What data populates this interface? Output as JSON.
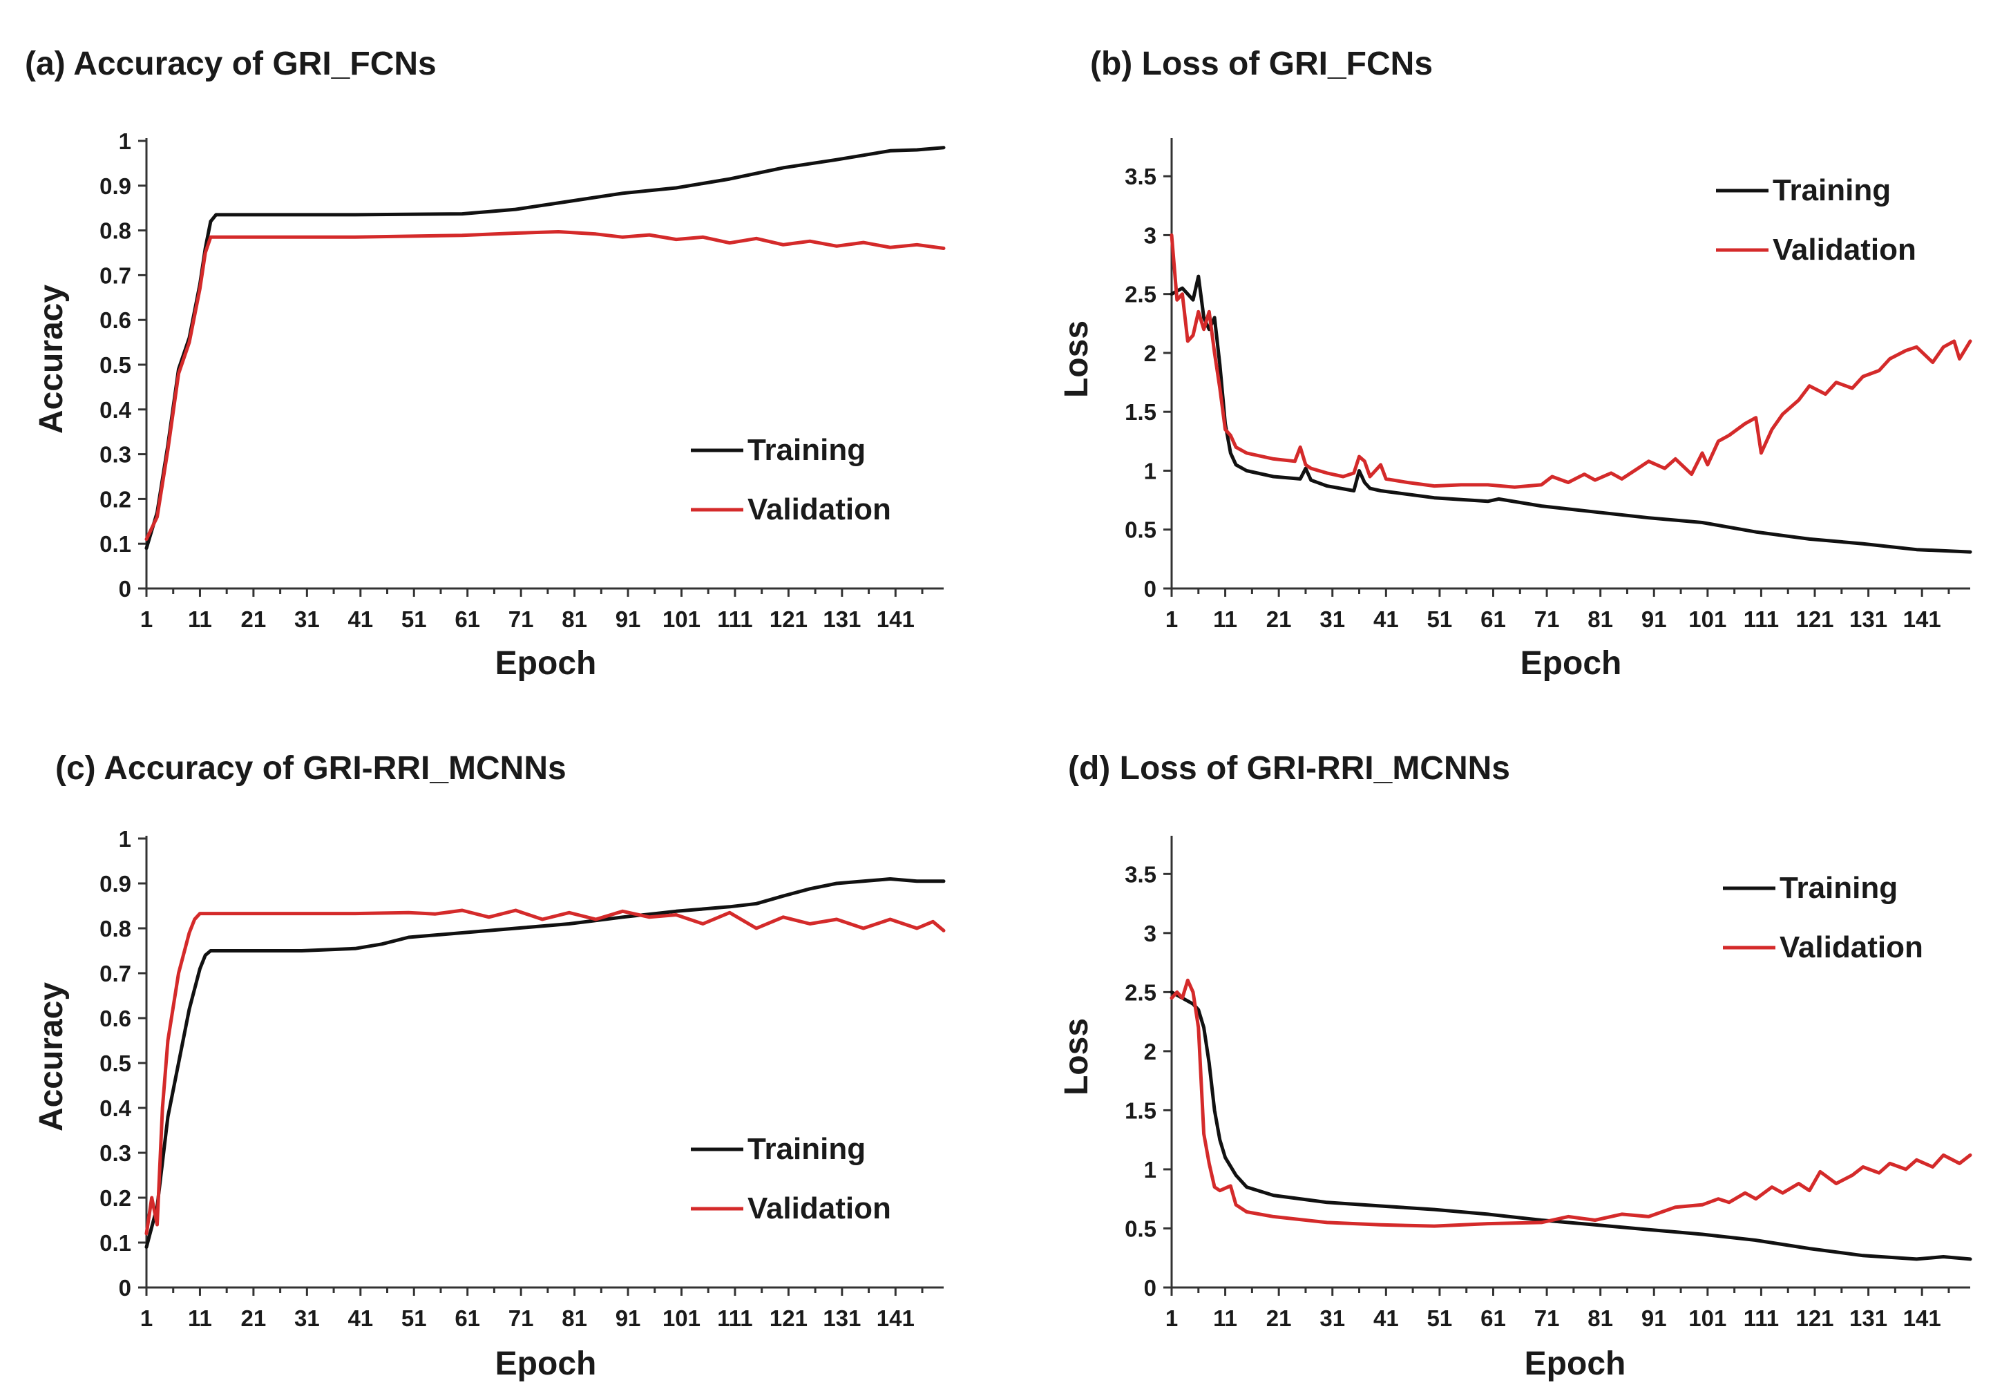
{
  "colors": {
    "training": "#111111",
    "validation": "#d42a2a"
  },
  "chart_data": [
    {
      "id": "a",
      "type": "line",
      "title": "(a) Accuracy of GRI_FCNs",
      "xlabel": "Epoch",
      "ylabel": "Accuracy",
      "xlim": [
        1,
        150
      ],
      "ylim": [
        0,
        1
      ],
      "xticks": [
        1,
        11,
        21,
        31,
        41,
        51,
        61,
        71,
        81,
        91,
        101,
        111,
        121,
        131,
        141
      ],
      "xtick_labels": [
        "1",
        "11",
        "21",
        "31",
        "41",
        "51",
        "61",
        "71",
        "81",
        "91",
        "101",
        "111",
        "121",
        "131",
        "141"
      ],
      "yticks": [
        0,
        0.1,
        0.2,
        0.3,
        0.4,
        0.5,
        0.6,
        0.7,
        0.8,
        0.9,
        1
      ],
      "ytick_labels": [
        "0",
        "0.1",
        "0.2",
        "0.3",
        "0.4",
        "0.5",
        "0.6",
        "0.7",
        "0.8",
        "0.9",
        "1"
      ],
      "legend_position": "bottom-right",
      "series": [
        {
          "name": "Training",
          "color": "#111111",
          "x": [
            1,
            3,
            5,
            7,
            9,
            11,
            12,
            13,
            14,
            20,
            40,
            60,
            70,
            80,
            90,
            100,
            110,
            120,
            130,
            140,
            145,
            150
          ],
          "y": [
            0.09,
            0.17,
            0.32,
            0.49,
            0.56,
            0.68,
            0.76,
            0.82,
            0.835,
            0.835,
            0.835,
            0.837,
            0.847,
            0.865,
            0.883,
            0.895,
            0.915,
            0.94,
            0.958,
            0.978,
            0.98,
            0.985
          ]
        },
        {
          "name": "Validation",
          "color": "#d42a2a",
          "x": [
            1,
            3,
            5,
            7,
            9,
            11,
            12,
            13,
            20,
            40,
            60,
            70,
            78,
            85,
            90,
            95,
            100,
            105,
            110,
            115,
            120,
            125,
            130,
            135,
            140,
            145,
            150
          ],
          "y": [
            0.11,
            0.16,
            0.31,
            0.48,
            0.55,
            0.67,
            0.75,
            0.785,
            0.785,
            0.785,
            0.789,
            0.794,
            0.797,
            0.792,
            0.785,
            0.79,
            0.78,
            0.785,
            0.772,
            0.782,
            0.768,
            0.776,
            0.765,
            0.773,
            0.762,
            0.768,
            0.76
          ]
        }
      ]
    },
    {
      "id": "b",
      "type": "line",
      "title": "(b) Loss of GRI_FCNs",
      "xlabel": "Epoch",
      "ylabel": "Loss",
      "xlim": [
        1,
        150
      ],
      "ylim": [
        0,
        3.8
      ],
      "xticks": [
        1,
        11,
        21,
        31,
        41,
        51,
        61,
        71,
        81,
        91,
        101,
        111,
        121,
        131,
        141
      ],
      "xtick_labels": [
        "1",
        "11",
        "21",
        "31",
        "41",
        "51",
        "61",
        "71",
        "81",
        "91",
        "101",
        "111",
        "121",
        "131",
        "141"
      ],
      "yticks": [
        0,
        0.5,
        1,
        1.5,
        2,
        2.5,
        3,
        3.5
      ],
      "ytick_labels": [
        "0",
        "0.5",
        "1",
        "1.5",
        "2",
        "2.5",
        "3",
        "3.5"
      ],
      "legend_position": "top-right",
      "series": [
        {
          "name": "Training",
          "color": "#111111",
          "x": [
            1,
            3,
            5,
            6,
            7,
            8,
            9,
            10,
            11,
            12,
            13,
            15,
            20,
            25,
            26,
            27,
            30,
            35,
            36,
            37,
            38,
            40,
            50,
            60,
            62,
            70,
            80,
            90,
            100,
            105,
            110,
            115,
            120,
            130,
            140,
            150
          ],
          "y": [
            2.5,
            2.55,
            2.45,
            2.65,
            2.3,
            2.2,
            2.3,
            1.9,
            1.4,
            1.15,
            1.05,
            1.0,
            0.95,
            0.93,
            1.02,
            0.92,
            0.87,
            0.83,
            1.0,
            0.9,
            0.85,
            0.83,
            0.77,
            0.74,
            0.76,
            0.7,
            0.65,
            0.6,
            0.56,
            0.52,
            0.48,
            0.45,
            0.42,
            0.38,
            0.33,
            0.31
          ]
        },
        {
          "name": "Validation",
          "color": "#d42a2a",
          "x": [
            1,
            2,
            3,
            4,
            5,
            6,
            7,
            8,
            9,
            10,
            11,
            12,
            13,
            15,
            20,
            24,
            25,
            26,
            27,
            30,
            33,
            35,
            36,
            37,
            38,
            40,
            41,
            45,
            50,
            55,
            60,
            65,
            70,
            72,
            75,
            78,
            80,
            83,
            85,
            88,
            90,
            93,
            95,
            98,
            100,
            101,
            103,
            105,
            108,
            110,
            111,
            113,
            115,
            118,
            120,
            123,
            125,
            128,
            130,
            133,
            135,
            138,
            140,
            143,
            145,
            147,
            148,
            150
          ],
          "y": [
            3.0,
            2.45,
            2.5,
            2.1,
            2.15,
            2.35,
            2.2,
            2.35,
            2.0,
            1.7,
            1.35,
            1.3,
            1.2,
            1.15,
            1.1,
            1.08,
            1.2,
            1.05,
            1.02,
            0.98,
            0.95,
            0.98,
            1.12,
            1.08,
            0.95,
            1.05,
            0.93,
            0.9,
            0.87,
            0.88,
            0.88,
            0.86,
            0.88,
            0.95,
            0.9,
            0.97,
            0.92,
            0.98,
            0.93,
            1.02,
            1.08,
            1.02,
            1.1,
            0.97,
            1.15,
            1.05,
            1.25,
            1.3,
            1.4,
            1.45,
            1.15,
            1.35,
            1.48,
            1.6,
            1.72,
            1.65,
            1.75,
            1.7,
            1.8,
            1.85,
            1.95,
            2.02,
            2.05,
            1.92,
            2.05,
            2.1,
            1.95,
            2.1
          ]
        }
      ]
    },
    {
      "id": "c",
      "type": "line",
      "title": "(c) Accuracy of GRI-RRI_MCNNs",
      "xlabel": "Epoch",
      "ylabel": "Accuracy",
      "xlim": [
        1,
        150
      ],
      "ylim": [
        0,
        1
      ],
      "xticks": [
        1,
        11,
        21,
        31,
        41,
        51,
        61,
        71,
        81,
        91,
        101,
        111,
        121,
        131,
        141
      ],
      "xtick_labels": [
        "1",
        "11",
        "21",
        "31",
        "41",
        "51",
        "61",
        "71",
        "81",
        "91",
        "101",
        "111",
        "121",
        "131",
        "141"
      ],
      "yticks": [
        0,
        0.1,
        0.2,
        0.3,
        0.4,
        0.5,
        0.6,
        0.7,
        0.8,
        0.9,
        1
      ],
      "ytick_labels": [
        "0",
        "0.1",
        "0.2",
        "0.3",
        "0.4",
        "0.5",
        "0.6",
        "0.7",
        "0.8",
        "0.9",
        "1"
      ],
      "legend_position": "bottom-right",
      "series": [
        {
          "name": "Training",
          "color": "#111111",
          "x": [
            1,
            3,
            5,
            7,
            9,
            11,
            12,
            13,
            15,
            20,
            30,
            40,
            45,
            50,
            60,
            70,
            80,
            90,
            100,
            110,
            115,
            120,
            125,
            130,
            135,
            140,
            145,
            150
          ],
          "y": [
            0.09,
            0.18,
            0.38,
            0.5,
            0.62,
            0.71,
            0.74,
            0.75,
            0.75,
            0.75,
            0.75,
            0.755,
            0.765,
            0.78,
            0.79,
            0.8,
            0.81,
            0.825,
            0.838,
            0.848,
            0.855,
            0.872,
            0.888,
            0.9,
            0.905,
            0.91,
            0.905,
            0.905
          ]
        },
        {
          "name": "Validation",
          "color": "#d42a2a",
          "x": [
            1,
            2,
            3,
            4,
            5,
            7,
            9,
            10,
            11,
            13,
            20,
            30,
            40,
            50,
            55,
            60,
            65,
            70,
            75,
            80,
            85,
            90,
            95,
            100,
            105,
            110,
            115,
            120,
            125,
            130,
            135,
            140,
            145,
            148,
            150
          ],
          "y": [
            0.12,
            0.2,
            0.14,
            0.4,
            0.55,
            0.7,
            0.79,
            0.82,
            0.833,
            0.833,
            0.833,
            0.833,
            0.833,
            0.835,
            0.832,
            0.84,
            0.825,
            0.84,
            0.82,
            0.835,
            0.82,
            0.838,
            0.825,
            0.83,
            0.81,
            0.835,
            0.8,
            0.825,
            0.81,
            0.82,
            0.8,
            0.82,
            0.8,
            0.815,
            0.795
          ]
        }
      ]
    },
    {
      "id": "d",
      "type": "line",
      "title": "(d) Loss of GRI-RRI_MCNNs",
      "xlabel": "Epoch",
      "ylabel": "Loss",
      "xlim": [
        1,
        150
      ],
      "ylim": [
        0,
        3.8
      ],
      "xticks": [
        1,
        11,
        21,
        31,
        41,
        51,
        61,
        71,
        81,
        91,
        101,
        111,
        121,
        131,
        141
      ],
      "xtick_labels": [
        "1",
        "11",
        "21",
        "31",
        "41",
        "51",
        "61",
        "71",
        "81",
        "91",
        "101",
        "111",
        "121",
        "131",
        "141"
      ],
      "yticks": [
        0,
        0.5,
        1,
        1.5,
        2,
        2.5,
        3,
        3.5
      ],
      "ytick_labels": [
        "0",
        "0.5",
        "1",
        "1.5",
        "2",
        "2.5",
        "3",
        "3.5"
      ],
      "legend_position": "top-right",
      "series": [
        {
          "name": "Training",
          "color": "#111111",
          "x": [
            1,
            3,
            5,
            6,
            7,
            8,
            9,
            10,
            11,
            13,
            15,
            20,
            30,
            40,
            50,
            60,
            70,
            80,
            90,
            100,
            110,
            120,
            130,
            140,
            145,
            150
          ],
          "y": [
            2.5,
            2.45,
            2.4,
            2.35,
            2.2,
            1.9,
            1.5,
            1.25,
            1.1,
            0.95,
            0.85,
            0.78,
            0.72,
            0.69,
            0.66,
            0.62,
            0.57,
            0.53,
            0.49,
            0.45,
            0.4,
            0.33,
            0.27,
            0.24,
            0.26,
            0.24
          ]
        },
        {
          "name": "Validation",
          "color": "#d42a2a",
          "x": [
            1,
            2,
            3,
            4,
            5,
            6,
            7,
            8,
            9,
            10,
            12,
            13,
            15,
            20,
            30,
            40,
            50,
            60,
            70,
            75,
            80,
            85,
            90,
            95,
            100,
            103,
            105,
            108,
            110,
            113,
            115,
            118,
            120,
            122,
            125,
            128,
            130,
            133,
            135,
            138,
            140,
            143,
            145,
            148,
            150
          ],
          "y": [
            2.45,
            2.5,
            2.45,
            2.6,
            2.5,
            2.2,
            1.3,
            1.05,
            0.85,
            0.82,
            0.86,
            0.7,
            0.64,
            0.6,
            0.55,
            0.53,
            0.52,
            0.54,
            0.55,
            0.6,
            0.57,
            0.62,
            0.6,
            0.68,
            0.7,
            0.75,
            0.72,
            0.8,
            0.75,
            0.85,
            0.8,
            0.88,
            0.82,
            0.98,
            0.88,
            0.95,
            1.02,
            0.97,
            1.05,
            1.0,
            1.08,
            1.02,
            1.12,
            1.05,
            1.12
          ]
        }
      ]
    }
  ]
}
